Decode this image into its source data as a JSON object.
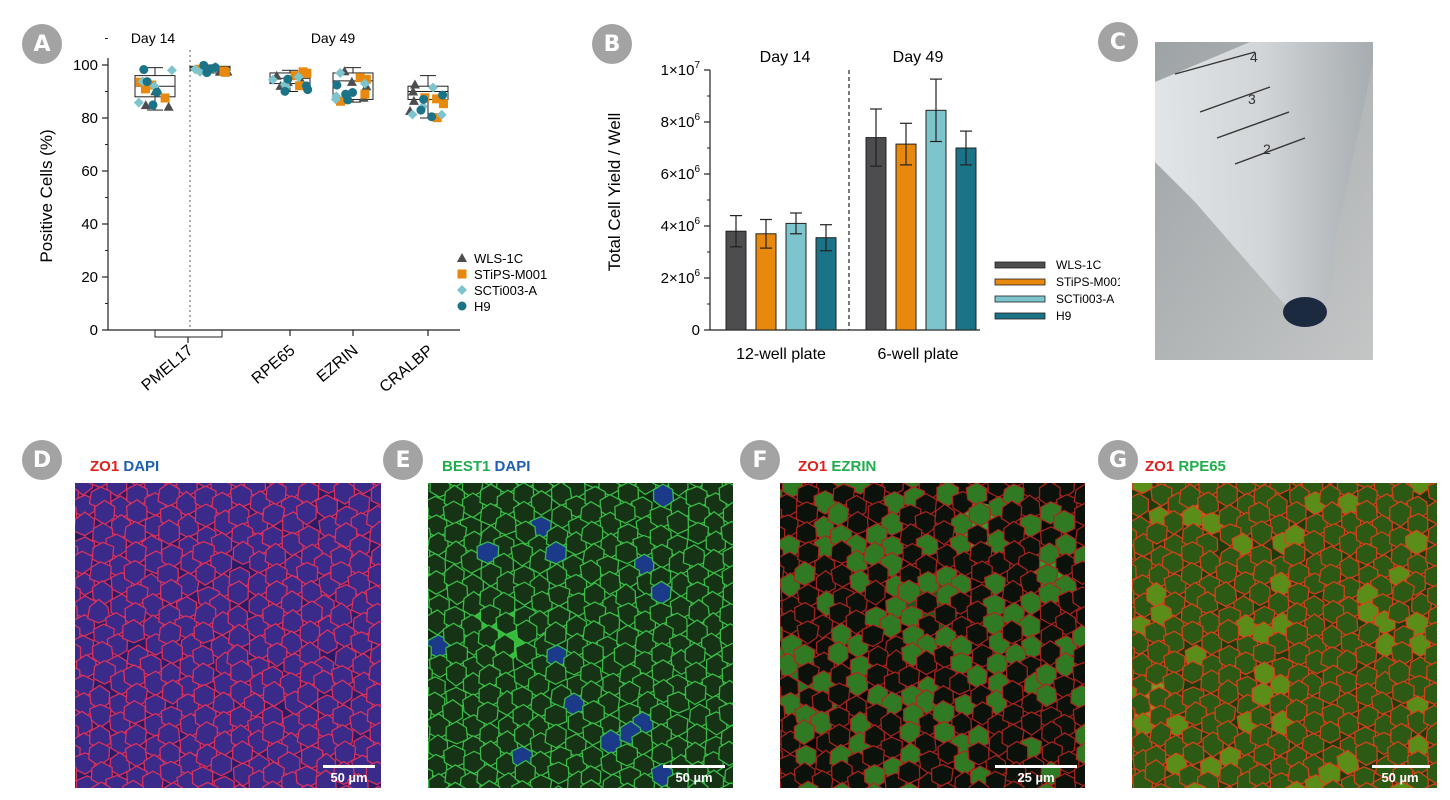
{
  "panels": {
    "a": {
      "label": "A"
    },
    "b": {
      "label": "B"
    },
    "c": {
      "label": "C"
    },
    "d": {
      "label": "D"
    },
    "e": {
      "label": "E"
    },
    "f": {
      "label": "F"
    },
    "g": {
      "label": "G"
    }
  },
  "legend": {
    "entries": [
      "WLS-1C",
      "STiPS-M001",
      "SCTi003-A",
      "H9"
    ],
    "colors": [
      "#4d4d4f",
      "#e8890e",
      "#7ec4cc",
      "#1a7386"
    ]
  },
  "chart_data": [
    {
      "type": "box",
      "ylabel": "Positive Cells (%)",
      "xlabel": "",
      "ylim": [
        0,
        100
      ],
      "yticks": [
        "0",
        "20",
        "40",
        "60",
        "80",
        "100"
      ],
      "timepoints": [
        "Day 14",
        "Day 49"
      ],
      "categories": [
        "PMEL17",
        "RPE65",
        "EZRIN",
        "CRALBP"
      ],
      "boxes": [
        {
          "category": "PMEL17",
          "timepoint": "Day 14",
          "min": 83,
          "q1": 88,
          "median": 92,
          "q3": 96,
          "max": 99
        },
        {
          "category": "PMEL17",
          "timepoint": "Day 49",
          "min": 97,
          "q1": 98,
          "median": 99,
          "q3": 99.5,
          "max": 100
        },
        {
          "category": "RPE65",
          "timepoint": "Day 49",
          "min": 90,
          "q1": 93,
          "median": 95,
          "q3": 97,
          "max": 98
        },
        {
          "category": "EZRIN",
          "timepoint": "Day 49",
          "min": 86,
          "q1": 87,
          "median": 94,
          "q3": 97,
          "max": 99
        },
        {
          "category": "CRALBP",
          "timepoint": "Day 49",
          "min": 80,
          "q1": 87,
          "median": 90,
          "q3": 92,
          "max": 96
        }
      ],
      "legend_position": "right"
    },
    {
      "type": "bar",
      "ylabel": "Total Cell Yield / Well",
      "xlabel": "",
      "ylim": [
        0,
        10000000
      ],
      "ytick_values": [
        0,
        2000000,
        4000000,
        6000000,
        8000000,
        10000000
      ],
      "ytick_labels": [
        "0",
        "2×10^6",
        "4×10^6",
        "6×10^6",
        "8×10^6",
        "1×10^7"
      ],
      "categories": [
        "12-well plate",
        "6-well plate"
      ],
      "group_titles": [
        "Day 14",
        "Day 49"
      ],
      "series": [
        {
          "name": "WLS-1C",
          "values": [
            3800000,
            7400000
          ],
          "errors": [
            600000,
            1100000
          ]
        },
        {
          "name": "STiPS-M001",
          "values": [
            3700000,
            7150000
          ],
          "errors": [
            550000,
            800000
          ]
        },
        {
          "name": "SCTi003-A",
          "values": [
            4100000,
            8450000
          ],
          "errors": [
            400000,
            1200000
          ]
        },
        {
          "name": "H9",
          "values": [
            3550000,
            7000000
          ],
          "errors": [
            500000,
            650000
          ]
        }
      ],
      "legend_position": "right"
    }
  ],
  "stains": {
    "d": [
      {
        "text": "ZO1",
        "color": "#e0201c"
      },
      {
        "text": "DAPI",
        "color": "#1f5fb3"
      }
    ],
    "e": [
      {
        "text": "BEST1",
        "color": "#1fae4b"
      },
      {
        "text": "DAPI",
        "color": "#1f5fb3"
      }
    ],
    "f": [
      {
        "text": "ZO1",
        "color": "#e0201c"
      },
      {
        "text": "EZRIN",
        "color": "#1fae4b"
      }
    ],
    "g": [
      {
        "text": "ZO1",
        "color": "#e0201c"
      },
      {
        "text": "RPE65",
        "color": "#1fae4b"
      }
    ]
  },
  "scalebars": {
    "d": "50 µm",
    "e": "50 µm",
    "f": "25 µm",
    "g": "50 µm"
  },
  "tube": {
    "graduations": [
      "4",
      "3",
      "2"
    ]
  }
}
